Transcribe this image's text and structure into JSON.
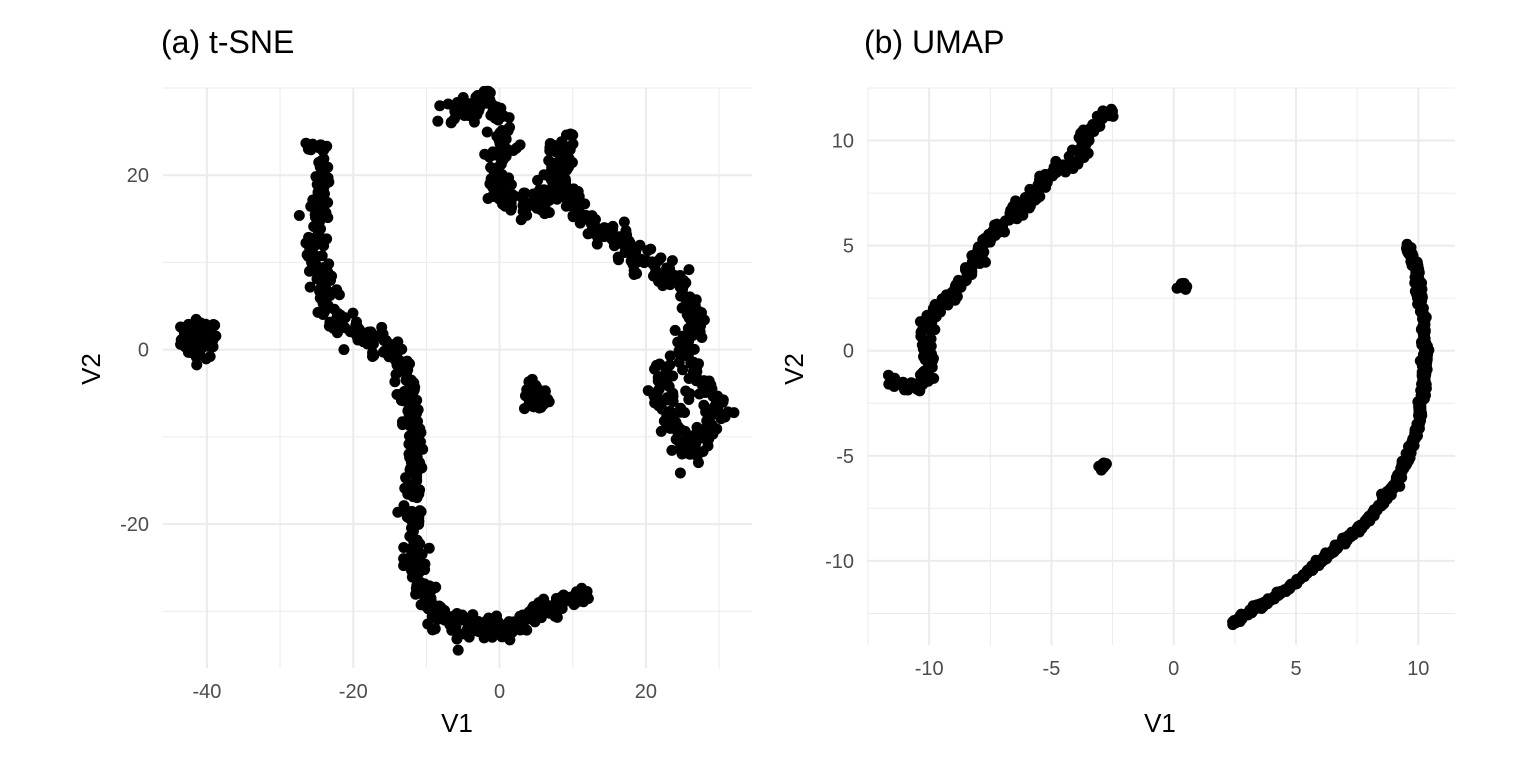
{
  "chart_data": [
    {
      "type": "scatter",
      "title": "(a) t-SNE",
      "xlabel": "V1",
      "ylabel": "V2",
      "xlim": [
        -46,
        34.5
      ],
      "ylim": [
        -36.5,
        30
      ],
      "x_ticks": [
        -40,
        -20,
        0,
        20
      ],
      "y_ticks": [
        -20,
        0,
        20
      ],
      "x_tick_labels": [
        "-40",
        "-20",
        "0",
        "20"
      ],
      "y_tick_labels": [
        "-20",
        "0",
        "20"
      ],
      "grid": true,
      "point_color": "#000000",
      "clusters": [
        {
          "shape": "blob",
          "center": [
            -41,
            1.2
          ],
          "spread": [
            1.8,
            1.6
          ],
          "n": 70
        },
        {
          "shape": "blob",
          "center": [
            5,
            -5.5
          ],
          "spread": [
            1.2,
            1.2
          ],
          "n": 45
        },
        {
          "shape": "path",
          "width": 1.2,
          "n": 520,
          "path": [
            [
              -25,
              24
            ],
            [
              -24,
              18
            ],
            [
              -25.5,
              12
            ],
            [
              -24,
              6
            ],
            [
              -22,
              3
            ],
            [
              -18,
              1.5
            ],
            [
              -14.5,
              0
            ],
            [
              -12.5,
              -4
            ],
            [
              -11.5,
              -10
            ],
            [
              -12,
              -18
            ],
            [
              -11,
              -26
            ],
            [
              -8,
              -31
            ],
            [
              -3,
              -32
            ],
            [
              3,
              -31.5
            ],
            [
              7,
              -29.5
            ],
            [
              12,
              -28
            ]
          ]
        },
        {
          "shape": "path",
          "width": 1.4,
          "n": 560,
          "path": [
            [
              -7,
              27
            ],
            [
              -2,
              29
            ],
            [
              1,
              24
            ],
            [
              -1,
              18
            ],
            [
              3,
              16
            ],
            [
              7,
              18
            ],
            [
              9,
              24
            ],
            [
              8,
              20
            ],
            [
              11,
              15
            ],
            [
              14,
              14
            ],
            [
              17,
              12
            ],
            [
              20,
              10
            ],
            [
              24,
              8
            ],
            [
              27,
              4
            ],
            [
              25,
              0
            ],
            [
              27,
              -3
            ],
            [
              30,
              -6
            ],
            [
              28,
              -10
            ],
            [
              26,
              -12
            ],
            [
              24,
              -9
            ],
            [
              22,
              -5
            ],
            [
              22,
              -2
            ]
          ]
        }
      ]
    },
    {
      "type": "scatter",
      "title": "(b) UMAP",
      "xlabel": "V1",
      "ylabel": "V2",
      "xlim": [
        -12.5,
        11.5
      ],
      "ylim": [
        -14,
        12.5
      ],
      "x_ticks": [
        -10,
        -5,
        0,
        5,
        10
      ],
      "y_ticks": [
        -10,
        -5,
        0,
        5,
        10
      ],
      "x_tick_labels": [
        "-10",
        "-5",
        "0",
        "5",
        "10"
      ],
      "y_tick_labels": [
        "-10",
        "-5",
        "0",
        "5",
        "10"
      ],
      "grid": true,
      "point_color": "#000000",
      "clusters": [
        {
          "shape": "path",
          "width": 0.25,
          "n": 280,
          "path": [
            [
              -11.5,
              -1.5
            ],
            [
              -10.5,
              -1.8
            ],
            [
              -10,
              -1
            ],
            [
              -10.2,
              1
            ],
            [
              -9.5,
              2
            ],
            [
              -8.5,
              3.5
            ],
            [
              -7.8,
              5
            ],
            [
              -7,
              6
            ],
            [
              -6,
              7
            ],
            [
              -5,
              8.5
            ],
            [
              -4,
              9
            ],
            [
              -3.5,
              10.5
            ],
            [
              -2.5,
              11.5
            ]
          ]
        },
        {
          "shape": "blob",
          "center": [
            0.35,
            3.1
          ],
          "spread": [
            0.12,
            0.12
          ],
          "n": 12
        },
        {
          "shape": "blob",
          "center": [
            -2.9,
            -5.5
          ],
          "spread": [
            0.1,
            0.15
          ],
          "n": 14
        },
        {
          "shape": "path",
          "width": 0.1,
          "n": 520,
          "path": [
            [
              9.5,
              5
            ],
            [
              9.9,
              4
            ],
            [
              10,
              3
            ],
            [
              10.2,
              1.6
            ],
            [
              10.3,
              0
            ],
            [
              10.2,
              -2
            ],
            [
              10,
              -3.5
            ],
            [
              9.6,
              -5
            ],
            [
              9,
              -6.5
            ],
            [
              8,
              -8
            ],
            [
              7,
              -9
            ],
            [
              6,
              -10
            ],
            [
              5,
              -11
            ],
            [
              4,
              -11.8
            ],
            [
              3,
              -12.5
            ],
            [
              2.4,
              -13
            ]
          ]
        }
      ]
    }
  ]
}
